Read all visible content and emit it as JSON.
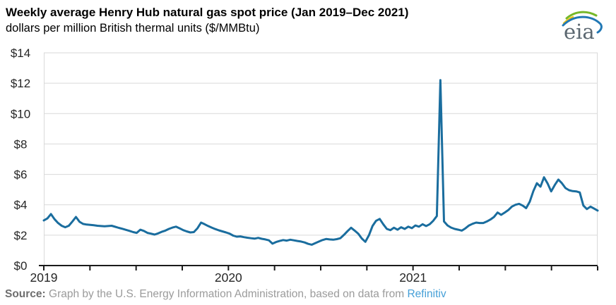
{
  "header": {
    "title": "Weekly average Henry Hub natural gas spot price (Jan 2019–Dec 2021)",
    "subtitle": "dollars per million British thermal units ($/MMBtu)"
  },
  "logo": {
    "text": "eia"
  },
  "footer": {
    "source_label": "Source:",
    "source_text": " Graph by the U.S. Energy Information Administration, based on data from ",
    "source_link": "Refinitiv"
  },
  "colors": {
    "line": "#1a6d9e",
    "grid": "#d9d9d9",
    "axis": "#1a1a1a",
    "tick_label": "#262626",
    "source_label": "#6e6e6e",
    "source_text": "#9b9b9b",
    "link": "#459fd7",
    "logo_text": "#5b6770",
    "logo_green": "#76b82a",
    "logo_blue": "#2178b5",
    "logo_yellow": "#f0c419"
  },
  "chart_data": {
    "type": "line",
    "title": "Weekly average Henry Hub natural gas spot price (Jan 2019–Dec 2021)",
    "ylabel": "dollars per million British thermal units ($/MMBtu)",
    "unit": "$/MMBtu",
    "frequency": "weekly",
    "x_years": [
      "2019",
      "2020",
      "2021"
    ],
    "points_per_year": 52,
    "minor_ticks": "quarterly",
    "ylim": [
      0,
      14
    ],
    "y_tick_step": 2,
    "y_tick_labels": [
      "$0",
      "$2",
      "$4",
      "$6",
      "$8",
      "$10",
      "$12",
      "$14"
    ],
    "grid": "horizontal",
    "legend": "none",
    "annotations": {
      "peak_value": 12.2,
      "peak_week": "mid-Feb 2021"
    },
    "series": [
      {
        "name": "Henry Hub natural gas spot price",
        "values": [
          2.97,
          3.1,
          3.39,
          3.05,
          2.8,
          2.62,
          2.52,
          2.62,
          2.9,
          3.2,
          2.88,
          2.74,
          2.7,
          2.68,
          2.65,
          2.62,
          2.6,
          2.58,
          2.6,
          2.62,
          2.55,
          2.48,
          2.42,
          2.35,
          2.28,
          2.2,
          2.15,
          2.36,
          2.28,
          2.15,
          2.1,
          2.04,
          2.12,
          2.22,
          2.3,
          2.41,
          2.5,
          2.56,
          2.45,
          2.33,
          2.25,
          2.18,
          2.2,
          2.45,
          2.83,
          2.72,
          2.6,
          2.5,
          2.4,
          2.32,
          2.25,
          2.18,
          2.1,
          1.97,
          1.9,
          1.92,
          1.87,
          1.83,
          1.8,
          1.77,
          1.82,
          1.76,
          1.72,
          1.66,
          1.44,
          1.55,
          1.62,
          1.68,
          1.64,
          1.7,
          1.66,
          1.62,
          1.58,
          1.52,
          1.43,
          1.37,
          1.48,
          1.58,
          1.68,
          1.75,
          1.72,
          1.7,
          1.74,
          1.8,
          2.02,
          2.26,
          2.49,
          2.3,
          2.1,
          1.78,
          1.56,
          2.0,
          2.6,
          2.95,
          3.07,
          2.72,
          2.41,
          2.33,
          2.49,
          2.36,
          2.52,
          2.41,
          2.56,
          2.46,
          2.64,
          2.56,
          2.72,
          2.6,
          2.72,
          2.95,
          3.26,
          12.2,
          2.9,
          2.64,
          2.5,
          2.41,
          2.36,
          2.3,
          2.45,
          2.64,
          2.75,
          2.83,
          2.8,
          2.8,
          2.9,
          3.03,
          3.2,
          3.49,
          3.34,
          3.49,
          3.65,
          3.88,
          4.0,
          4.06,
          3.95,
          3.78,
          4.2,
          4.9,
          5.42,
          5.19,
          5.81,
          5.4,
          4.88,
          5.3,
          5.66,
          5.42,
          5.1,
          4.96,
          4.9,
          4.88,
          4.81,
          3.95,
          3.72,
          3.88,
          3.75,
          3.62
        ]
      }
    ]
  }
}
